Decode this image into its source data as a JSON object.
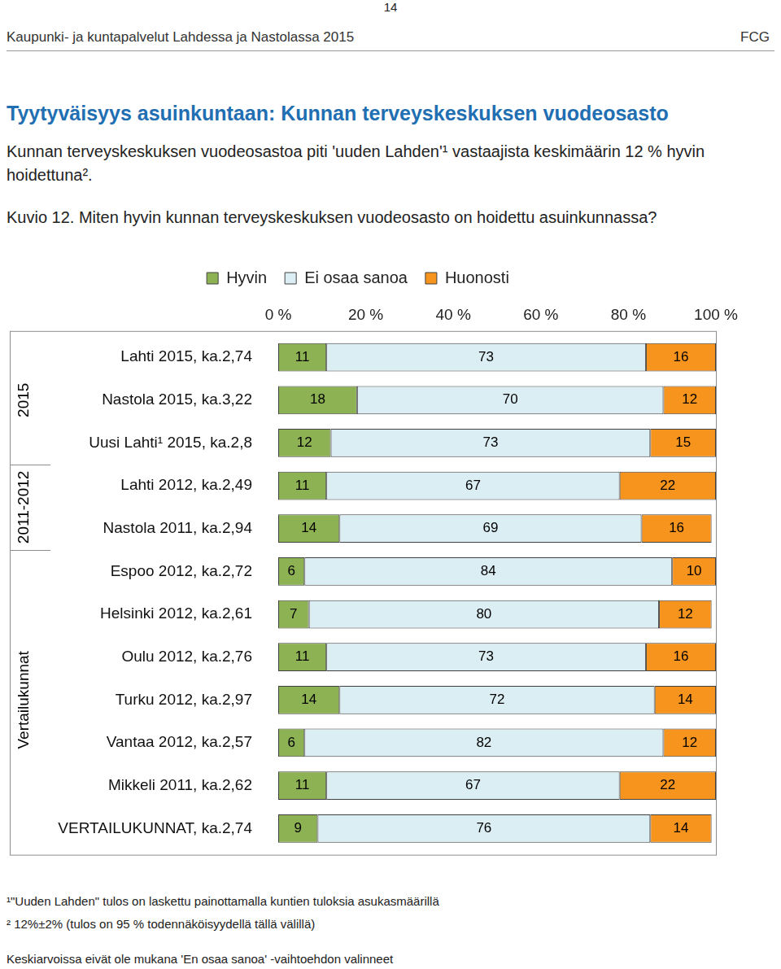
{
  "page": {
    "page_number": "14",
    "header": "Kaupunki- ja kuntapalvelut Lahdessa ja Nastolassa 2015",
    "brand": "FCG",
    "heading": "Tyytyväisyys asuinkuntaan: Kunnan terveyskeskuksen vuodeosasto",
    "intro": "Kunnan terveyskeskuksen vuodeosastoa piti 'uuden Lahden'¹ vastaajista keskimäärin 12 % hyvin hoidettuna².",
    "footnotes": [
      "¹\"Uuden Lahden\" tulos on laskettu painottamalla kuntien tuloksia asukasmäärillä",
      "² 12%±2% (tulos on 95 % todennäköisyydellä tällä välillä)"
    ],
    "note": "Keskiarvoissa eivät ole mukana 'En osaa sanoa' -vaihtoehdon valinneet"
  },
  "chart_data": {
    "type": "bar",
    "title": "Kuvio 12. Miten hyvin kunnan terveyskeskuksen vuodeosasto on hoidettu asuinkunnassa?",
    "orientation": "horizontal",
    "stacked": true,
    "data_labels": true,
    "grid": false,
    "legend": "top",
    "categories": [
      "Lahti 2015, ka.2,74",
      "Nastola 2015, ka.3,22",
      "Uusi Lahti¹ 2015, ka.2,8",
      "Lahti 2012, ka.2,49",
      "Nastola 2011, ka.2,94",
      "Espoo 2012, ka.2,72",
      "Helsinki 2012, ka.2,61",
      "Oulu 2012, ka.2,76",
      "Turku 2012, ka.2,97",
      "Vantaa 2012, ka.2,57",
      "Mikkeli 2011, ka.2,62",
      "VERTAILUKUNNAT, ka.2,74"
    ],
    "groups": [
      {
        "name": "2015",
        "categories": [
          "Lahti 2015, ka.2,74",
          "Nastola 2015, ka.3,22",
          "Uusi Lahti¹ 2015, ka.2,8"
        ]
      },
      {
        "name": "2011-2012",
        "categories": [
          "Lahti 2012, ka.2,49",
          "Nastola 2011, ka.2,94"
        ]
      },
      {
        "name": "Vertailukunnat",
        "categories": [
          "Espoo 2012, ka.2,72",
          "Helsinki 2012, ka.2,61",
          "Oulu 2012, ka.2,76",
          "Turku 2012, ka.2,97",
          "Vantaa 2012, ka.2,57",
          "Mikkeli 2011, ka.2,62",
          "VERTAILUKUNNAT, ka.2,74"
        ]
      }
    ],
    "series": [
      {
        "name": "Hyvin",
        "color": "#8db253",
        "values": [
          11,
          18,
          12,
          11,
          14,
          6,
          7,
          11,
          14,
          6,
          11,
          9
        ]
      },
      {
        "name": "Ei osaa sanoa",
        "color": "#dbeef4",
        "values": [
          73,
          70,
          73,
          67,
          69,
          84,
          80,
          73,
          72,
          82,
          67,
          76
        ]
      },
      {
        "name": "Huonosti",
        "color": "#f7941d",
        "values": [
          16,
          12,
          15,
          22,
          16,
          10,
          12,
          16,
          14,
          12,
          22,
          14
        ]
      }
    ],
    "xlim": [
      0,
      100
    ],
    "xticks": [
      {
        "value": 0,
        "label": "0 %"
      },
      {
        "value": 20,
        "label": "20 %"
      },
      {
        "value": 40,
        "label": "40 %"
      },
      {
        "value": 60,
        "label": "60 %"
      },
      {
        "value": 80,
        "label": "80 %"
      },
      {
        "value": 100,
        "label": "100 %"
      }
    ]
  }
}
